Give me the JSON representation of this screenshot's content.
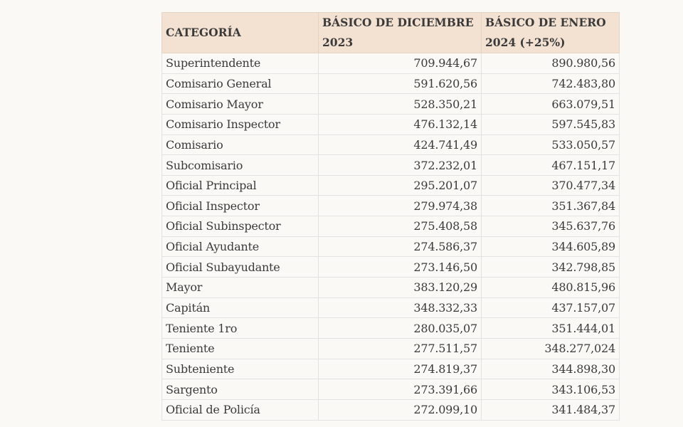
{
  "table": {
    "headers": [
      "CATEGORÍA",
      "BÁSICO DE DICIEMBRE 2023",
      "BÁSICO DE ENERO 2024 (+25%)"
    ],
    "rows": [
      [
        "Superintendente",
        "709.944,67",
        "890.980,56"
      ],
      [
        "Comisario General",
        "591.620,56",
        "742.483,80"
      ],
      [
        "Comisario Mayor",
        "528.350,21",
        "663.079,51"
      ],
      [
        "Comisario Inspector",
        "476.132,14",
        "597.545,83"
      ],
      [
        "Comisario",
        "424.741,49",
        "533.050,57"
      ],
      [
        "Subcomisario",
        "372.232,01",
        "467.151,17"
      ],
      [
        "Oficial Principal",
        "295.201,07",
        "370.477,34"
      ],
      [
        "Oficial Inspector",
        "279.974,38",
        "351.367,84"
      ],
      [
        "Oficial Subinspector",
        "275.408,58",
        "345.637,76"
      ],
      [
        "Oficial Ayudante",
        "274.586,37",
        "344.605,89"
      ],
      [
        "Oficial Subayudante",
        "273.146,50",
        "342.798,85"
      ],
      [
        "Mayor",
        "383.120,29",
        "480.815,96"
      ],
      [
        "Capitán",
        "348.332,33",
        "437.157,07"
      ],
      [
        "Teniente 1ro",
        "280.035,07",
        "351.444,01"
      ],
      [
        "Teniente",
        "277.511,57",
        "348.277,024"
      ],
      [
        "Subteniente",
        "274.819,37",
        "344.898,30"
      ],
      [
        "Sargento",
        "273.391,66",
        "343.106,53"
      ],
      [
        "Oficial de Policía",
        "272.099,10",
        "341.484,37"
      ]
    ]
  }
}
